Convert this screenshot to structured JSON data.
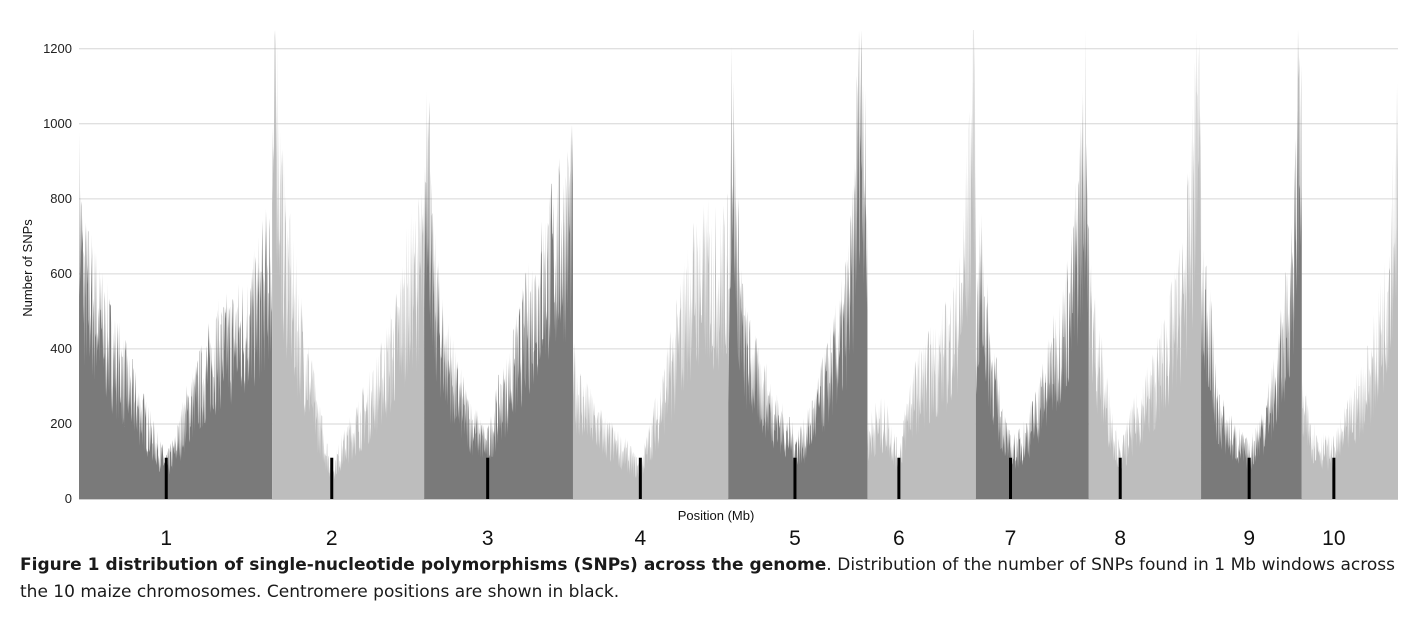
{
  "chart_data": {
    "type": "area",
    "xlabel": "Position (Mb)",
    "ylabel": "Number of SNPs",
    "ylim": [
      0,
      1250
    ],
    "yticks": [
      0,
      200,
      400,
      600,
      800,
      1000,
      1200
    ],
    "grid": true,
    "colors": {
      "dark": "#7a7a7a",
      "light": "#bdbdbd",
      "centromere": "#000000",
      "grid": "#d6d6d6"
    },
    "chromosomes": [
      {
        "label": "1",
        "length": 301,
        "centromere": 136,
        "shade": "dark",
        "profile": [
          [
            0,
            800
          ],
          [
            8,
            600
          ],
          [
            20,
            560
          ],
          [
            40,
            460
          ],
          [
            60,
            380
          ],
          [
            80,
            300
          ],
          [
            100,
            230
          ],
          [
            120,
            150
          ],
          [
            136,
            95
          ],
          [
            150,
            140
          ],
          [
            170,
            250
          ],
          [
            190,
            320
          ],
          [
            210,
            400
          ],
          [
            230,
            430
          ],
          [
            250,
            460
          ],
          [
            270,
            500
          ],
          [
            290,
            600
          ],
          [
            301,
            650
          ]
        ]
      },
      {
        "label": "2",
        "length": 237,
        "centromere": 93,
        "shade": "light",
        "profile": [
          [
            0,
            950
          ],
          [
            8,
            1080
          ],
          [
            15,
            760
          ],
          [
            30,
            560
          ],
          [
            50,
            400
          ],
          [
            70,
            230
          ],
          [
            93,
            80
          ],
          [
            110,
            140
          ],
          [
            130,
            200
          ],
          [
            150,
            260
          ],
          [
            170,
            330
          ],
          [
            190,
            420
          ],
          [
            210,
            560
          ],
          [
            225,
            620
          ],
          [
            237,
            660
          ]
        ]
      },
      {
        "label": "3",
        "length": 232,
        "centromere": 99,
        "shade": "dark",
        "profile": [
          [
            0,
            660
          ],
          [
            5,
            1130
          ],
          [
            12,
            600
          ],
          [
            30,
            430
          ],
          [
            50,
            300
          ],
          [
            70,
            220
          ],
          [
            90,
            170
          ],
          [
            99,
            150
          ],
          [
            115,
            250
          ],
          [
            135,
            330
          ],
          [
            155,
            450
          ],
          [
            175,
            560
          ],
          [
            195,
            650
          ],
          [
            215,
            720
          ],
          [
            232,
            790
          ]
        ]
      },
      {
        "label": "4",
        "length": 242,
        "centromere": 105,
        "shade": "light",
        "profile": [
          [
            0,
            330
          ],
          [
            20,
            250
          ],
          [
            40,
            200
          ],
          [
            60,
            160
          ],
          [
            80,
            130
          ],
          [
            105,
            80
          ],
          [
            120,
            170
          ],
          [
            140,
            280
          ],
          [
            160,
            400
          ],
          [
            175,
            520
          ],
          [
            190,
            600
          ],
          [
            210,
            620
          ],
          [
            230,
            600
          ],
          [
            242,
            640
          ]
        ]
      },
      {
        "label": "5",
        "length": 217,
        "centromere": 104,
        "shade": "dark",
        "profile": [
          [
            0,
            330
          ],
          [
            5,
            1140
          ],
          [
            12,
            720
          ],
          [
            25,
            420
          ],
          [
            45,
            330
          ],
          [
            65,
            260
          ],
          [
            85,
            200
          ],
          [
            104,
            150
          ],
          [
            120,
            170
          ],
          [
            140,
            260
          ],
          [
            160,
            360
          ],
          [
            180,
            470
          ],
          [
            195,
            650
          ],
          [
            205,
            1150
          ],
          [
            210,
            1100
          ],
          [
            217,
            650
          ]
        ]
      },
      {
        "label": "6",
        "length": 169,
        "centromere": 49,
        "shade": "light",
        "profile": [
          [
            0,
            170
          ],
          [
            15,
            210
          ],
          [
            30,
            210
          ],
          [
            49,
            110
          ],
          [
            65,
            260
          ],
          [
            85,
            330
          ],
          [
            105,
            370
          ],
          [
            125,
            420
          ],
          [
            145,
            520
          ],
          [
            160,
            850
          ],
          [
            166,
            1210
          ],
          [
            169,
            700
          ]
        ]
      },
      {
        "label": "7",
        "length": 176,
        "centromere": 54,
        "shade": "dark",
        "profile": [
          [
            0,
            460
          ],
          [
            8,
            620
          ],
          [
            20,
            420
          ],
          [
            35,
            260
          ],
          [
            54,
            130
          ],
          [
            70,
            150
          ],
          [
            90,
            220
          ],
          [
            110,
            320
          ],
          [
            130,
            430
          ],
          [
            150,
            560
          ],
          [
            165,
            850
          ],
          [
            172,
            1020
          ],
          [
            176,
            700
          ]
        ]
      },
      {
        "label": "8",
        "length": 175,
        "centromere": 49,
        "shade": "light",
        "profile": [
          [
            0,
            560
          ],
          [
            10,
            440
          ],
          [
            25,
            290
          ],
          [
            49,
            110
          ],
          [
            65,
            190
          ],
          [
            85,
            260
          ],
          [
            105,
            330
          ],
          [
            125,
            430
          ],
          [
            145,
            550
          ],
          [
            160,
            750
          ],
          [
            170,
            1160
          ],
          [
            175,
            800
          ]
        ]
      },
      {
        "label": "9",
        "length": 157,
        "centromere": 75,
        "shade": "dark",
        "profile": [
          [
            0,
            500
          ],
          [
            10,
            540
          ],
          [
            25,
            240
          ],
          [
            45,
            180
          ],
          [
            60,
            150
          ],
          [
            75,
            120
          ],
          [
            95,
            200
          ],
          [
            115,
            300
          ],
          [
            135,
            500
          ],
          [
            148,
            760
          ],
          [
            153,
            1170
          ],
          [
            157,
            800
          ]
        ]
      },
      {
        "label": "10",
        "length": 150,
        "centromere": 50,
        "shade": "light",
        "profile": [
          [
            0,
            250
          ],
          [
            15,
            180
          ],
          [
            30,
            140
          ],
          [
            50,
            130
          ],
          [
            70,
            200
          ],
          [
            90,
            280
          ],
          [
            110,
            360
          ],
          [
            130,
            520
          ],
          [
            142,
            760
          ],
          [
            150,
            900
          ]
        ]
      }
    ]
  },
  "caption": {
    "bold": "Figure 1 distribution of single-nucleotide polymorphisms (SNPs) across the genome",
    "text": ". Distribution of the number of SNPs found in 1 Mb windows across the 10 maize chromosomes. Centromere positions are shown in black."
  }
}
